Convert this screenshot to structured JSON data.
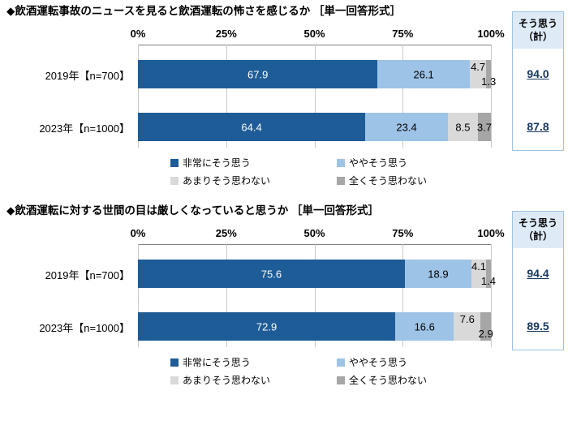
{
  "colors": {
    "segments": [
      "#1E5C97",
      "#9DC3E6",
      "#D9D9D9",
      "#A6A6A6"
    ],
    "segment_label_colors": [
      "#FFFFFF",
      "#000000",
      "#000000",
      "#000000"
    ],
    "grid_line": "#C9C9C9",
    "axis_line": "#808080",
    "summary_border": "#9DC3E6",
    "summary_header_bg": "#DEEBF7",
    "summary_value_color": "#17375E"
  },
  "axis_ticks": [
    "0%",
    "25%",
    "50%",
    "75%",
    "100%"
  ],
  "summary_box": {
    "line1": "そう思う",
    "line2": "（計）"
  },
  "chart_data": [
    {
      "type": "bar",
      "orientation": "horizontal",
      "stacked": true,
      "title": "◆飲酒運転事故のニュースを見ると飲酒運転の怖さを感じるか ［単一回答形式］",
      "categories": [
        "2019年【n=700】",
        "2023年【n=1000】"
      ],
      "series": [
        {
          "name": "非常にそう思う",
          "values": [
            67.9,
            64.4
          ]
        },
        {
          "name": "ややそう思う",
          "values": [
            26.1,
            23.4
          ]
        },
        {
          "name": "あまりそう思わない",
          "values": [
            4.7,
            8.5
          ]
        },
        {
          "name": "全くそう思わない",
          "values": [
            1.3,
            3.7
          ]
        }
      ],
      "summary": {
        "label": "そう思う（計）",
        "values": [
          "94.0",
          "87.8"
        ]
      },
      "xlim": [
        0,
        100
      ],
      "x_ticks": [
        "0%",
        "25%",
        "50%",
        "75%",
        "100%"
      ],
      "legend_position": "bottom"
    },
    {
      "type": "bar",
      "orientation": "horizontal",
      "stacked": true,
      "title": "◆飲酒運転に対する世間の目は厳しくなっていると思うか ［単一回答形式］",
      "categories": [
        "2019年【n=700】",
        "2023年【n=1000】"
      ],
      "series": [
        {
          "name": "非常にそう思う",
          "values": [
            75.6,
            72.9
          ]
        },
        {
          "name": "ややそう思う",
          "values": [
            18.9,
            16.6
          ]
        },
        {
          "name": "あまりそう思わない",
          "values": [
            4.1,
            7.6
          ]
        },
        {
          "name": "全くそう思わない",
          "values": [
            1.4,
            2.9
          ]
        }
      ],
      "summary": {
        "label": "そう思う（計）",
        "values": [
          "94.4",
          "89.5"
        ]
      },
      "xlim": [
        0,
        100
      ],
      "x_ticks": [
        "0%",
        "25%",
        "50%",
        "75%",
        "100%"
      ],
      "legend_position": "bottom"
    }
  ]
}
